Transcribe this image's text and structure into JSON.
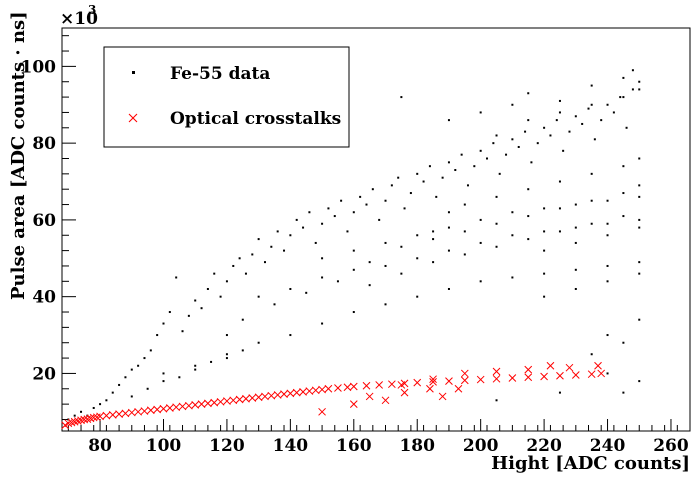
{
  "chart_data": {
    "type": "scatter",
    "xlabel": "Hight [ADC counts]",
    "ylabel": "Pulse area [ADC counts · ns]",
    "y_multiplier_label": "×10",
    "y_multiplier_exponent": "3",
    "xlim": [
      68,
      266
    ],
    "ylim": [
      5,
      110
    ],
    "x_ticks": [
      80,
      100,
      120,
      140,
      160,
      180,
      200,
      220,
      240,
      260
    ],
    "y_ticks": [
      20,
      40,
      60,
      80,
      100
    ],
    "grid": false,
    "legend_position": "top-left",
    "series": [
      {
        "name": "Fe-55 data",
        "marker": "dot",
        "color": "#000000",
        "points": [
          [
            70,
            8
          ],
          [
            72,
            9
          ],
          [
            74,
            10
          ],
          [
            76,
            9
          ],
          [
            78,
            11
          ],
          [
            80,
            12
          ],
          [
            82,
            13
          ],
          [
            84,
            15
          ],
          [
            86,
            17
          ],
          [
            88,
            19
          ],
          [
            90,
            21
          ],
          [
            92,
            22
          ],
          [
            94,
            24
          ],
          [
            96,
            26
          ],
          [
            98,
            30
          ],
          [
            100,
            33
          ],
          [
            102,
            36
          ],
          [
            104,
            45
          ],
          [
            106,
            31
          ],
          [
            108,
            35
          ],
          [
            110,
            39
          ],
          [
            112,
            37
          ],
          [
            114,
            42
          ],
          [
            116,
            46
          ],
          [
            118,
            40
          ],
          [
            120,
            44
          ],
          [
            122,
            48
          ],
          [
            124,
            50
          ],
          [
            126,
            46
          ],
          [
            128,
            51
          ],
          [
            130,
            55
          ],
          [
            132,
            49
          ],
          [
            134,
            53
          ],
          [
            136,
            57
          ],
          [
            138,
            52
          ],
          [
            140,
            56
          ],
          [
            142,
            60
          ],
          [
            144,
            58
          ],
          [
            146,
            62
          ],
          [
            148,
            54
          ],
          [
            150,
            59
          ],
          [
            152,
            63
          ],
          [
            154,
            61
          ],
          [
            156,
            65
          ],
          [
            158,
            57
          ],
          [
            160,
            62
          ],
          [
            162,
            66
          ],
          [
            164,
            64
          ],
          [
            166,
            68
          ],
          [
            168,
            60
          ],
          [
            170,
            65
          ],
          [
            172,
            69
          ],
          [
            174,
            71
          ],
          [
            176,
            63
          ],
          [
            178,
            67
          ],
          [
            180,
            72
          ],
          [
            182,
            70
          ],
          [
            184,
            74
          ],
          [
            186,
            66
          ],
          [
            188,
            71
          ],
          [
            190,
            75
          ],
          [
            192,
            73
          ],
          [
            194,
            77
          ],
          [
            196,
            69
          ],
          [
            198,
            74
          ],
          [
            200,
            78
          ],
          [
            202,
            76
          ],
          [
            204,
            80
          ],
          [
            206,
            72
          ],
          [
            208,
            77
          ],
          [
            210,
            81
          ],
          [
            212,
            79
          ],
          [
            214,
            83
          ],
          [
            216,
            75
          ],
          [
            218,
            80
          ],
          [
            220,
            84
          ],
          [
            222,
            82
          ],
          [
            224,
            86
          ],
          [
            226,
            78
          ],
          [
            228,
            83
          ],
          [
            230,
            87
          ],
          [
            232,
            85
          ],
          [
            234,
            89
          ],
          [
            236,
            81
          ],
          [
            238,
            86
          ],
          [
            240,
            90
          ],
          [
            242,
            88
          ],
          [
            244,
            92
          ],
          [
            246,
            84
          ],
          [
            248,
            94
          ],
          [
            250,
            96
          ],
          [
            100,
            20
          ],
          [
            110,
            22
          ],
          [
            120,
            25
          ],
          [
            130,
            28
          ],
          [
            140,
            30
          ],
          [
            150,
            33
          ],
          [
            160,
            36
          ],
          [
            170,
            38
          ],
          [
            180,
            40
          ],
          [
            190,
            42
          ],
          [
            200,
            44
          ],
          [
            210,
            45
          ],
          [
            220,
            46
          ],
          [
            230,
            47
          ],
          [
            240,
            48
          ],
          [
            250,
            49
          ],
          [
            130,
            40
          ],
          [
            140,
            42
          ],
          [
            150,
            45
          ],
          [
            160,
            47
          ],
          [
            170,
            48
          ],
          [
            180,
            50
          ],
          [
            190,
            52
          ],
          [
            200,
            54
          ],
          [
            210,
            56
          ],
          [
            220,
            57
          ],
          [
            230,
            58
          ],
          [
            240,
            59
          ],
          [
            250,
            60
          ],
          [
            150,
            50
          ],
          [
            160,
            52
          ],
          [
            170,
            54
          ],
          [
            180,
            56
          ],
          [
            190,
            58
          ],
          [
            200,
            60
          ],
          [
            210,
            62
          ],
          [
            220,
            63
          ],
          [
            230,
            64
          ],
          [
            240,
            65
          ],
          [
            250,
            66
          ],
          [
            175,
            92
          ],
          [
            190,
            86
          ],
          [
            200,
            88
          ],
          [
            210,
            90
          ],
          [
            215,
            93
          ],
          [
            225,
            91
          ],
          [
            235,
            95
          ],
          [
            245,
            97
          ],
          [
            248,
            99
          ],
          [
            205,
            82
          ],
          [
            215,
            86
          ],
          [
            225,
            88
          ],
          [
            235,
            90
          ],
          [
            245,
            92
          ],
          [
            250,
            94
          ],
          [
            190,
            62
          ],
          [
            195,
            64
          ],
          [
            205,
            66
          ],
          [
            215,
            68
          ],
          [
            225,
            70
          ],
          [
            235,
            72
          ],
          [
            245,
            74
          ],
          [
            250,
            76
          ],
          [
            185,
            55
          ],
          [
            195,
            57
          ],
          [
            205,
            59
          ],
          [
            215,
            61
          ],
          [
            225,
            63
          ],
          [
            235,
            65
          ],
          [
            245,
            67
          ],
          [
            250,
            69
          ],
          [
            165,
            43
          ],
          [
            175,
            46
          ],
          [
            185,
            49
          ],
          [
            195,
            51
          ],
          [
            205,
            53
          ],
          [
            215,
            55
          ],
          [
            225,
            57
          ],
          [
            235,
            59
          ],
          [
            245,
            61
          ],
          [
            220,
            52
          ],
          [
            230,
            54
          ],
          [
            240,
            56
          ],
          [
            250,
            58
          ],
          [
            220,
            40
          ],
          [
            230,
            42
          ],
          [
            240,
            44
          ],
          [
            250,
            46
          ],
          [
            120,
            30
          ],
          [
            125,
            34
          ],
          [
            135,
            38
          ],
          [
            145,
            41
          ],
          [
            155,
            44
          ],
          [
            165,
            49
          ],
          [
            175,
            53
          ],
          [
            185,
            57
          ],
          [
            90,
            14
          ],
          [
            95,
            16
          ],
          [
            100,
            18
          ],
          [
            105,
            19
          ],
          [
            110,
            21
          ],
          [
            115,
            23
          ],
          [
            120,
            24
          ],
          [
            125,
            26
          ],
          [
            240,
            30
          ],
          [
            245,
            28
          ],
          [
            250,
            34
          ],
          [
            235,
            25
          ],
          [
            240,
            20
          ],
          [
            250,
            18
          ],
          [
            245,
            15
          ],
          [
            225,
            15
          ],
          [
            205,
            13
          ]
        ]
      },
      {
        "name": "Optical crosstalks",
        "marker": "x",
        "color": "#ff0000",
        "points": [
          [
            69,
            6.5
          ],
          [
            70,
            7
          ],
          [
            71,
            7.2
          ],
          [
            72,
            7.4
          ],
          [
            73,
            7.6
          ],
          [
            74,
            7.8
          ],
          [
            75,
            8
          ],
          [
            76,
            8.1
          ],
          [
            77,
            8.3
          ],
          [
            78,
            8.5
          ],
          [
            79,
            8.6
          ],
          [
            80,
            8.8
          ],
          [
            82,
            9
          ],
          [
            84,
            9.2
          ],
          [
            86,
            9.4
          ],
          [
            88,
            9.6
          ],
          [
            90,
            9.8
          ],
          [
            92,
            10
          ],
          [
            94,
            10.2
          ],
          [
            96,
            10.4
          ],
          [
            98,
            10.6
          ],
          [
            100,
            10.8
          ],
          [
            102,
            11
          ],
          [
            104,
            11.2
          ],
          [
            106,
            11.4
          ],
          [
            108,
            11.6
          ],
          [
            110,
            11.8
          ],
          [
            112,
            12
          ],
          [
            114,
            12.2
          ],
          [
            116,
            12.4
          ],
          [
            118,
            12.6
          ],
          [
            120,
            12.8
          ],
          [
            122,
            13
          ],
          [
            124,
            13.2
          ],
          [
            126,
            13.4
          ],
          [
            128,
            13.6
          ],
          [
            130,
            13.8
          ],
          [
            132,
            14
          ],
          [
            134,
            14.2
          ],
          [
            136,
            14.4
          ],
          [
            138,
            14.6
          ],
          [
            140,
            14.8
          ],
          [
            142,
            15
          ],
          [
            144,
            15.2
          ],
          [
            146,
            15.4
          ],
          [
            148,
            15.6
          ],
          [
            150,
            15.8
          ],
          [
            152,
            16
          ],
          [
            155,
            16.2
          ],
          [
            158,
            16.4
          ],
          [
            160,
            16.6
          ],
          [
            164,
            16.8
          ],
          [
            168,
            17
          ],
          [
            172,
            17.2
          ],
          [
            176,
            17.4
          ],
          [
            180,
            17.6
          ],
          [
            185,
            17.8
          ],
          [
            190,
            18
          ],
          [
            195,
            18.2
          ],
          [
            200,
            18.4
          ],
          [
            205,
            18.6
          ],
          [
            210,
            18.8
          ],
          [
            215,
            19
          ],
          [
            220,
            19.2
          ],
          [
            225,
            19.4
          ],
          [
            230,
            19.6
          ],
          [
            235,
            19.8
          ],
          [
            238,
            20
          ],
          [
            165,
            14
          ],
          [
            175,
            17
          ],
          [
            185,
            18.5
          ],
          [
            195,
            20
          ],
          [
            205,
            20.5
          ],
          [
            215,
            21
          ],
          [
            222,
            22
          ],
          [
            228,
            21.5
          ],
          [
            237,
            22
          ],
          [
            150,
            10
          ],
          [
            160,
            12
          ],
          [
            170,
            13
          ],
          [
            176,
            15
          ],
          [
            184,
            16
          ],
          [
            188,
            14
          ],
          [
            193,
            16
          ]
        ]
      }
    ]
  }
}
